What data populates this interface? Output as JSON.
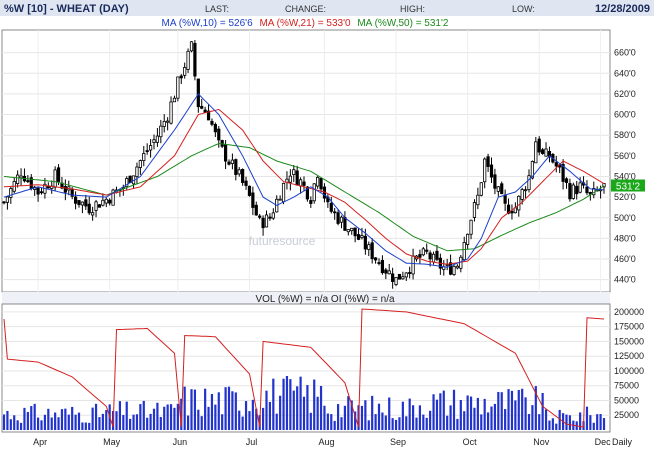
{
  "header": {
    "symbol_title": "%W [10] - WHEAT (DAY)",
    "last_label": "LAST:",
    "change_label": "CHANGE:",
    "high_label": "HIGH:",
    "low_label": "LOW:",
    "date": "12/28/2009"
  },
  "ma_legend": {
    "ma10": "MA (%W,10) = 526'6",
    "ma21": "MA (%W,21) = 533'0",
    "ma50": "MA (%W,50) = 531'2"
  },
  "last_price_tag": "531'2",
  "watermark": "futuresource",
  "volume_title": "VOL (%W) = n/a OI (%W) = n/a",
  "colors": {
    "background": "#ffffff",
    "header_bg": "#dfe6f2",
    "ma10": "#1a3fcc",
    "ma21": "#d42020",
    "ma50": "#1a8a1a",
    "volume_bars": "#2233cc",
    "open_interest": "#d42020",
    "price_tag": "#1aa81a"
  },
  "chart_data": [
    {
      "type": "candlestick",
      "title": "%W [10] - WHEAT (DAY)",
      "ylim": [
        430,
        680
      ],
      "ytick_labels": [
        "440'0",
        "460'0",
        "480'0",
        "500'0",
        "520'0",
        "540'0",
        "560'0",
        "580'0",
        "600'0",
        "620'0",
        "640'0",
        "660'0"
      ],
      "ytick_values": [
        440,
        460,
        480,
        500,
        520,
        540,
        560,
        580,
        600,
        620,
        640,
        660
      ],
      "x_labels": [
        "Apr",
        "May",
        "Jun",
        "Jul",
        "Aug",
        "Sep",
        "Oct",
        "Nov",
        "Dec"
      ],
      "grid": true,
      "last_price": 531.25,
      "series_anchors": {
        "price": [
          [
            0,
            515
          ],
          [
            5,
            545
          ],
          [
            10,
            525
          ],
          [
            15,
            540
          ],
          [
            20,
            520
          ],
          [
            25,
            510
          ],
          [
            30,
            518
          ],
          [
            35,
            530
          ],
          [
            40,
            555
          ],
          [
            45,
            580
          ],
          [
            48,
            600
          ],
          [
            52,
            640
          ],
          [
            55,
            665
          ],
          [
            57,
            610
          ],
          [
            60,
            600
          ],
          [
            63,
            570
          ],
          [
            66,
            555
          ],
          [
            69,
            540
          ],
          [
            72,
            520
          ],
          [
            75,
            495
          ],
          [
            78,
            500
          ],
          [
            81,
            525
          ],
          [
            84,
            545
          ],
          [
            87,
            535
          ],
          [
            90,
            520
          ],
          [
            92,
            545
          ],
          [
            95,
            510
          ],
          [
            98,
            500
          ],
          [
            101,
            490
          ],
          [
            104,
            480
          ],
          [
            108,
            465
          ],
          [
            112,
            450
          ],
          [
            115,
            440
          ],
          [
            118,
            450
          ],
          [
            121,
            460
          ],
          [
            124,
            465
          ],
          [
            127,
            455
          ],
          [
            130,
            450
          ],
          [
            133,
            455
          ],
          [
            136,
            490
          ],
          [
            139,
            520
          ],
          [
            141,
            555
          ],
          [
            144,
            530
          ],
          [
            147,
            510
          ],
          [
            150,
            510
          ],
          [
            152,
            525
          ],
          [
            154,
            540
          ],
          [
            156,
            575
          ],
          [
            158,
            560
          ],
          [
            160,
            560
          ],
          [
            163,
            545
          ],
          [
            166,
            525
          ],
          [
            169,
            530
          ],
          [
            172,
            520
          ],
          [
            176,
            530
          ]
        ],
        "ma10": [
          [
            0,
            520
          ],
          [
            10,
            530
          ],
          [
            20,
            522
          ],
          [
            30,
            520
          ],
          [
            40,
            540
          ],
          [
            50,
            585
          ],
          [
            57,
            620
          ],
          [
            63,
            600
          ],
          [
            70,
            560
          ],
          [
            76,
            520
          ],
          [
            80,
            512
          ],
          [
            85,
            520
          ],
          [
            90,
            530
          ],
          [
            95,
            520
          ],
          [
            100,
            500
          ],
          [
            106,
            485
          ],
          [
            112,
            468
          ],
          [
            118,
            456
          ],
          [
            124,
            455
          ],
          [
            130,
            452
          ],
          [
            136,
            460
          ],
          [
            140,
            480
          ],
          [
            145,
            520
          ],
          [
            150,
            525
          ],
          [
            155,
            540
          ],
          [
            160,
            560
          ],
          [
            166,
            545
          ],
          [
            172,
            528
          ],
          [
            176,
            527
          ]
        ],
        "ma21": [
          [
            0,
            530
          ],
          [
            10,
            532
          ],
          [
            20,
            528
          ],
          [
            30,
            522
          ],
          [
            40,
            530
          ],
          [
            50,
            560
          ],
          [
            57,
            600
          ],
          [
            63,
            605
          ],
          [
            70,
            585
          ],
          [
            76,
            555
          ],
          [
            82,
            535
          ],
          [
            88,
            530
          ],
          [
            94,
            525
          ],
          [
            100,
            515
          ],
          [
            106,
            498
          ],
          [
            112,
            480
          ],
          [
            118,
            465
          ],
          [
            124,
            458
          ],
          [
            130,
            455
          ],
          [
            136,
            458
          ],
          [
            140,
            470
          ],
          [
            146,
            500
          ],
          [
            152,
            515
          ],
          [
            158,
            535
          ],
          [
            164,
            555
          ],
          [
            170,
            545
          ],
          [
            176,
            533
          ]
        ],
        "ma50": [
          [
            0,
            540
          ],
          [
            15,
            535
          ],
          [
            30,
            522
          ],
          [
            45,
            540
          ],
          [
            55,
            560
          ],
          [
            63,
            572
          ],
          [
            72,
            568
          ],
          [
            80,
            555
          ],
          [
            90,
            545
          ],
          [
            100,
            525
          ],
          [
            110,
            505
          ],
          [
            120,
            482
          ],
          [
            130,
            468
          ],
          [
            138,
            470
          ],
          [
            146,
            483
          ],
          [
            154,
            495
          ],
          [
            162,
            505
          ],
          [
            170,
            518
          ],
          [
            176,
            531
          ]
        ]
      }
    },
    {
      "type": "bar",
      "title": "VOL (%W) = n/a OI (%W) = n/a",
      "ylim": [
        0,
        210000
      ],
      "ytick_labels": [
        "25000",
        "50000",
        "75000",
        "100000",
        "125000",
        "150000",
        "175000",
        "200000"
      ],
      "ytick_values": [
        25000,
        50000,
        75000,
        100000,
        125000,
        150000,
        175000,
        200000
      ],
      "x_labels": [
        "Apr",
        "May",
        "Jun",
        "Jul",
        "Aug",
        "Sep",
        "Oct",
        "Nov",
        "Dec",
        "Daily"
      ],
      "series": [
        {
          "name": "VOL (%W)",
          "segments": [
            [
              0,
              30,
              45000
            ],
            [
              31,
              50,
              50000
            ],
            [
              51,
              70,
              80000
            ],
            [
              71,
              94,
              95000
            ],
            [
              95,
              120,
              60000
            ],
            [
              121,
              158,
              75000
            ],
            [
              159,
              166,
              35000
            ],
            [
              167,
              176,
              40000
            ]
          ]
        },
        {
          "name": "OI (%W)",
          "anchors": [
            [
              1,
              120000
            ],
            [
              10,
              115000
            ],
            [
              20,
              90000
            ],
            [
              30,
              40000
            ],
            [
              32,
              5000
            ],
            [
              33,
              170000
            ],
            [
              42,
              172000
            ],
            [
              50,
              130000
            ],
            [
              52,
              5000
            ],
            [
              53,
              160000
            ],
            [
              62,
              158000
            ],
            [
              72,
              95000
            ],
            [
              75,
              5000
            ],
            [
              76,
              150000
            ],
            [
              90,
              140000
            ],
            [
              100,
              80000
            ],
            [
              104,
              5000
            ],
            [
              105,
              205000
            ],
            [
              118,
              200000
            ],
            [
              135,
              180000
            ],
            [
              150,
              130000
            ],
            [
              158,
              40000
            ],
            [
              165,
              10000
            ],
            [
              170,
              5000
            ],
            [
              171,
              190000
            ],
            [
              176,
              188000
            ]
          ]
        }
      ]
    }
  ]
}
